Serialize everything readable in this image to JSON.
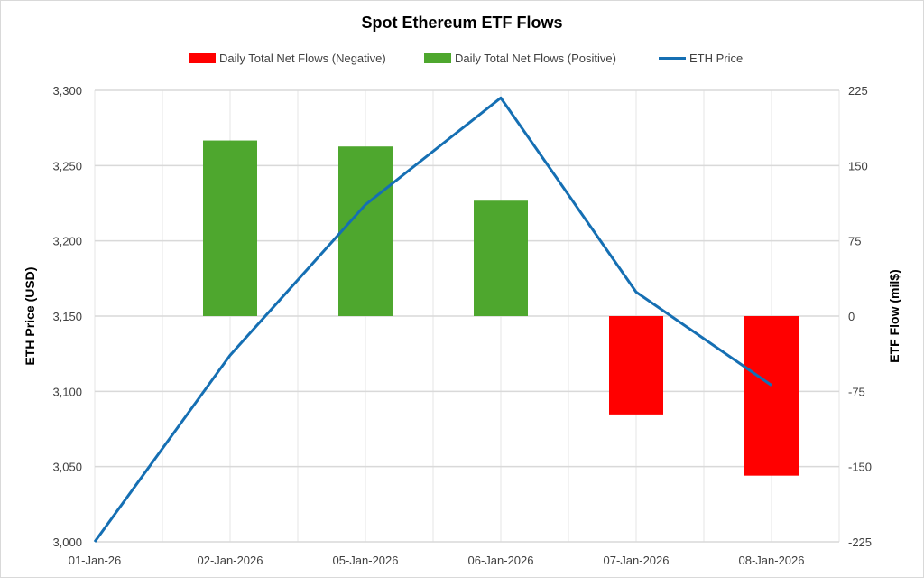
{
  "chart_data": {
    "type": "bar+line",
    "title": "Spot Ethereum ETF Flows",
    "categories": [
      "01-Jan-26",
      "02-Jan-2026",
      "05-Jan-2026",
      "06-Jan-2026",
      "07-Jan-2026",
      "08-Jan-2026"
    ],
    "ylabel_left": "ETH Price (USD)",
    "ylabel_right": "ETF Flow (mil$)",
    "ylim_left": [
      3000,
      3300
    ],
    "ylim_right": [
      -225,
      225
    ],
    "yticks_left": [
      "3,000",
      "3,050",
      "3,100",
      "3,150",
      "3,200",
      "3,250",
      "3,300"
    ],
    "yticks_right": [
      "-225",
      "-150",
      "-75",
      "0",
      "75",
      "150",
      "225"
    ],
    "grid": true,
    "legend_placement": "top",
    "series": [
      {
        "name": "Daily Total Net Flows (Negative)",
        "type": "bar",
        "axis": "right",
        "color": "#ff0000",
        "values": [
          null,
          null,
          null,
          null,
          -98,
          -159
        ]
      },
      {
        "name": "Daily Total Net Flows (Positive)",
        "type": "bar",
        "axis": "right",
        "color": "#4ea72e",
        "values": [
          null,
          175,
          169,
          115,
          null,
          null
        ]
      },
      {
        "name": "ETH Price",
        "type": "line",
        "axis": "left",
        "color": "#156fb3",
        "values": [
          3000,
          3124,
          3224,
          3295,
          3166,
          3104
        ]
      }
    ]
  }
}
